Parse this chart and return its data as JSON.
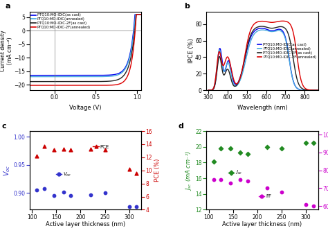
{
  "panel_a": {
    "xlabel": "Voltage (V)",
    "ylabel": "Current density\n(mA cm⁻²)",
    "xlim": [
      -0.3,
      1.05
    ],
    "ylim": [
      -22,
      7
    ],
    "xticks": [
      -0.0,
      0.5,
      1.0
    ],
    "yticks": [
      -20,
      -15,
      -10,
      -5,
      0,
      5
    ],
    "curves": {
      "blue": {
        "label": "PTQ10:MO-IDIC(as cast)",
        "color": "#0000ee",
        "jsc": -16.5,
        "voc": 0.955,
        "n": 2.2
      },
      "cyan": {
        "label": "PTQ10:MO-IDIC(annealed)",
        "color": "#44aadd",
        "jsc": -17.0,
        "voc": 0.96,
        "n": 2.3
      },
      "black": {
        "label": "PTQ10:MO-IDIC-2F(as cast)",
        "color": "#222222",
        "jsc": -18.8,
        "voc": 0.97,
        "n": 2.4
      },
      "red": {
        "label": "PTQ10:MO-IDIC-2F(annealed)",
        "color": "#dd0000",
        "jsc": -20.2,
        "voc": 0.975,
        "n": 2.0
      }
    },
    "order": [
      "blue",
      "cyan",
      "black",
      "red"
    ]
  },
  "panel_b": {
    "xlabel": "Wavelength (nm)",
    "ylabel": "IPCE (%)",
    "xlim": [
      290,
      870
    ],
    "ylim": [
      0,
      95
    ],
    "xticks": [
      300,
      400,
      500,
      600,
      700,
      800
    ],
    "curves": {
      "blue": {
        "label": "PTQ10:MO-IDIC(as cast)",
        "color": "#0000ee"
      },
      "cyan": {
        "label": "PTQ10:MO-IDIC(annealed)",
        "color": "#44aadd"
      },
      "black": {
        "label": "PTQ10:MO-IDIC-2F(as cast)",
        "color": "#222222"
      },
      "red": {
        "label": "PTQ10:MO-IDIC-2F(annealed)",
        "color": "#dd0000"
      }
    },
    "order": [
      "blue",
      "cyan",
      "black",
      "red"
    ]
  },
  "panel_c": {
    "xlabel": "Active layer thickness (nm)",
    "ylabel_left": "$V_{oc}$",
    "ylabel_right": "PCE (%)",
    "xlim": [
      95,
      325
    ],
    "ylim_left": [
      0.87,
      1.01
    ],
    "ylim_right": [
      4,
      16
    ],
    "yticks_left": [
      0.9,
      0.95,
      1.0
    ],
    "yticks_right": [
      4,
      6,
      8,
      10,
      12,
      14,
      16
    ],
    "xticks": [
      100,
      150,
      200,
      250,
      300
    ],
    "thickness": [
      110,
      125,
      145,
      165,
      180,
      220,
      250,
      300,
      315
    ],
    "voc": [
      0.905,
      0.908,
      0.895,
      0.901,
      0.895,
      0.897,
      0.9,
      0.876,
      0.875
    ],
    "pce": [
      12.2,
      13.7,
      13.2,
      13.3,
      13.2,
      13.3,
      13.1,
      10.2,
      9.5
    ],
    "color_voc": "#3333cc",
    "color_pce": "#cc0000"
  },
  "panel_d": {
    "xlabel": "Active layer thickness (nm)",
    "ylabel_left": "$J_{sc}$ (mA cm⁻²)",
    "ylabel_right": "FF (%)",
    "xlim": [
      95,
      325
    ],
    "ylim_left": [
      12,
      22
    ],
    "ylim_right": [
      58,
      102
    ],
    "yticks_left": [
      12,
      14,
      16,
      18,
      20,
      22
    ],
    "yticks_right": [
      60,
      70,
      80,
      90,
      100
    ],
    "xticks": [
      100,
      150,
      200,
      250,
      300
    ],
    "thickness": [
      110,
      125,
      145,
      165,
      180,
      220,
      250,
      300,
      315
    ],
    "jsc": [
      18.1,
      19.8,
      19.8,
      19.3,
      19.1,
      20.0,
      19.8,
      20.5,
      20.5
    ],
    "ff": [
      75,
      75,
      73,
      75,
      74,
      70,
      68,
      61,
      60
    ],
    "color_jsc": "#228B22",
    "color_ff": "#cc00cc"
  }
}
